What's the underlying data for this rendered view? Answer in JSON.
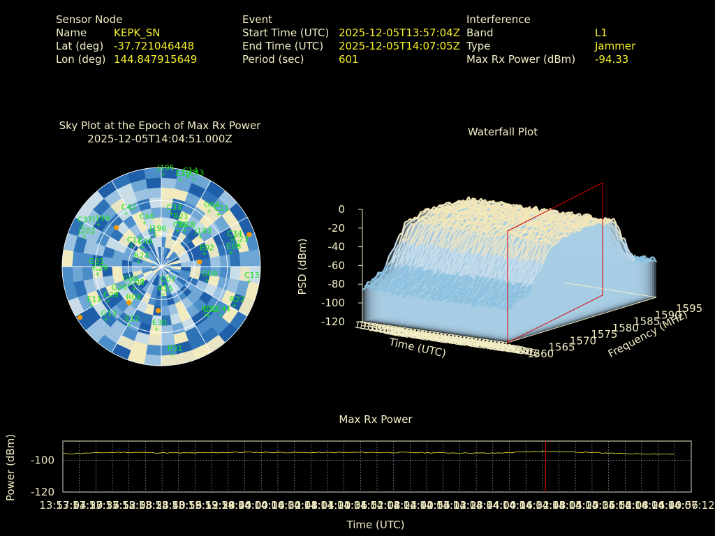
{
  "colors": {
    "label": "#f3eec6",
    "value": "#f5ef2a",
    "satellite": "#19e319",
    "marker": "#ff9a00",
    "cursor": "#e00000",
    "trace": "#f5ef2a"
  },
  "header": {
    "sensor": {
      "heading": "Sensor Node",
      "rows": [
        {
          "label": "Name",
          "value": "KEPK_SN"
        },
        {
          "label": "Lat (deg)",
          "value": "-37.721046448"
        },
        {
          "label": "Lon (deg)",
          "value": "144.847915649"
        }
      ]
    },
    "event": {
      "heading": "Event",
      "rows": [
        {
          "label": "Start Time (UTC)",
          "value": "2025-12-05T13:57:04Z"
        },
        {
          "label": "End Time (UTC)",
          "value": "2025-12-05T14:07:05Z"
        },
        {
          "label": "Period (sec)",
          "value": "601"
        }
      ]
    },
    "interference": {
      "heading": "Interference",
      "rows": [
        {
          "label": "Band",
          "value": "L1"
        },
        {
          "label": "Type",
          "value": "Jammer"
        },
        {
          "label": "Max Rx Power (dBm)",
          "value": "-94.33"
        }
      ]
    }
  },
  "skyplot": {
    "title": "Sky Plot at the Epoch of Max Rx Power",
    "subtitle": "2025-12-05T14:04:51.000Z",
    "satellites": [
      {
        "id": "J195",
        "az": 2,
        "el": 5
      },
      {
        "id": "E16",
        "az": 13,
        "el": 8
      },
      {
        "id": "C14",
        "az": 17,
        "el": 4
      },
      {
        "id": "C43",
        "az": 21,
        "el": 4
      },
      {
        "id": "C33",
        "az": 12,
        "el": 40
      },
      {
        "id": "R21",
        "az": 22,
        "el": 46
      },
      {
        "id": "C01",
        "az": 26,
        "el": 53
      },
      {
        "id": "G04",
        "az": 41,
        "el": 22
      },
      {
        "id": "C11",
        "az": 48,
        "el": 18
      },
      {
        "id": "C60",
        "az": 341,
        "el": 47
      },
      {
        "id": "J196",
        "az": 352,
        "el": 60
      },
      {
        "id": "C42",
        "az": 328,
        "el": 32
      },
      {
        "id": "J199",
        "az": 305,
        "el": 22
      },
      {
        "id": "C37",
        "az": 298,
        "el": 10
      },
      {
        "id": "J202",
        "az": 292,
        "el": 16
      },
      {
        "id": "C12",
        "az": 307,
        "el": 58
      },
      {
        "id": "C46",
        "az": 319,
        "el": 66
      },
      {
        "id": "G28",
        "az": 34,
        "el": 50
      },
      {
        "id": "J193",
        "az": 53,
        "el": 44
      },
      {
        "id": "E02",
        "az": 73,
        "el": 48
      },
      {
        "id": "C34",
        "az": 69,
        "el": 20
      },
      {
        "id": "C23",
        "az": 74,
        "el": 16
      },
      {
        "id": "E08",
        "az": 78,
        "el": 24
      },
      {
        "id": "R23",
        "az": 285,
        "el": 70
      },
      {
        "id": "C13",
        "az": 99,
        "el": 8
      },
      {
        "id": "G09",
        "az": 105,
        "el": 46
      },
      {
        "id": "C32",
        "az": 135,
        "el": 28
      },
      {
        "id": "R22",
        "az": 117,
        "el": 14
      },
      {
        "id": "C41",
        "az": 128,
        "el": 20
      },
      {
        "id": "R01",
        "az": 136,
        "el": 30
      },
      {
        "id": "C07",
        "az": 163,
        "el": 73
      },
      {
        "id": "R15",
        "az": 174,
        "el": 65
      },
      {
        "id": "C08",
        "az": 231,
        "el": 60
      },
      {
        "id": "G05",
        "az": 241,
        "el": 57
      },
      {
        "id": "G26",
        "az": 239,
        "el": 44
      },
      {
        "id": "R08",
        "az": 219,
        "el": 48
      },
      {
        "id": "E11",
        "az": 241,
        "el": 19
      },
      {
        "id": "C28",
        "az": 237,
        "el": 34
      },
      {
        "id": "G13",
        "az": 226,
        "el": 22
      },
      {
        "id": "E12",
        "az": 208,
        "el": 31
      },
      {
        "id": "E30",
        "az": 183,
        "el": 34
      },
      {
        "id": "R31",
        "az": 172,
        "el": 10
      },
      {
        "id": "C29",
        "az": 264,
        "el": 33
      },
      {
        "id": "G31",
        "az": 270,
        "el": 30
      }
    ],
    "markers": [
      {
        "az": 311,
        "el": 36
      },
      {
        "az": 70,
        "el": 5
      },
      {
        "az": 83,
        "el": 55
      },
      {
        "az": 238,
        "el": 3
      },
      {
        "az": 222,
        "el": 46
      },
      {
        "az": 184,
        "el": 50
      }
    ]
  },
  "waterfall": {
    "title": "Waterfall Plot",
    "zlabel": "PSD (dBm)",
    "xlabel": "Time (UTC)",
    "ylabel": "Frequency (MHz)",
    "z_ticks": [
      "0",
      "-20",
      "-40",
      "-60",
      "-80",
      "-100",
      "-120"
    ],
    "freq_ticks": [
      "1560",
      "1565",
      "1570",
      "1575",
      "1580",
      "1585",
      "1590",
      "1595"
    ]
  },
  "maxrx": {
    "title": "Max Rx Power",
    "ylabel": "Power (dBm)",
    "xlabel": "Time (UTC)",
    "y_ticks": [
      "-100",
      "-120"
    ],
    "x_ticks": [
      "13:57:04",
      "13:57:20",
      "13:57:36",
      "13:57:52",
      "13:58:08",
      "13:58:24",
      "13:58:40",
      "13:58:56",
      "13:59:12",
      "13:59:28",
      "13:59:44",
      "14:00:00",
      "14:00:16",
      "14:00:32",
      "14:00:48",
      "14:01:04",
      "14:01:20",
      "14:01:36",
      "14:01:52",
      "14:02:08",
      "14:02:24",
      "14:02:40",
      "14:02:56",
      "14:03:12",
      "14:03:28",
      "14:03:44",
      "14:04:00",
      "14:04:16",
      "14:04:32",
      "14:04:48",
      "14:05:04",
      "14:05:20",
      "14:05:36",
      "14:05:52",
      "14:06:08",
      "14:06:24",
      "14:06:40",
      "14:06:56",
      "14:07:12"
    ]
  },
  "chart_data": [
    {
      "type": "scatter",
      "title": "Sky Plot at the Epoch of Max Rx Power",
      "subtitle": "2025-12-05T14:04:51.000Z",
      "note": "polar azimuth/elevation"
    },
    {
      "type": "area",
      "title": "Waterfall Plot",
      "xlabel": "Time (UTC)",
      "ylabel": "Frequency (MHz)",
      "zlabel": "PSD (dBm)",
      "zlim": [
        -120,
        0
      ],
      "ylim": [
        1560,
        1595
      ],
      "profile": {
        "freq_mhz": [
          1560,
          1565,
          1570,
          1575,
          1580,
          1585,
          1590,
          1595
        ],
        "psd_dbm": [
          -85,
          -72,
          -30,
          -22,
          -22,
          -24,
          -75,
          -80
        ]
      }
    },
    {
      "type": "line",
      "title": "Max Rx Power",
      "xlabel": "Time (UTC)",
      "ylabel": "Power (dBm)",
      "ylim": [
        -120,
        -88
      ],
      "x": [
        "13:57:04",
        "13:58:00",
        "13:59:00",
        "14:00:00",
        "14:01:00",
        "14:02:00",
        "14:03:00",
        "14:04:00",
        "14:04:51",
        "14:05:30",
        "14:06:00",
        "14:07:05"
      ],
      "values": [
        -96,
        -95,
        -95.5,
        -95,
        -95.2,
        -95.1,
        -95.3,
        -95.6,
        -94.33,
        -95,
        -95.8,
        -96.3
      ],
      "cursor": "14:04:51"
    }
  ]
}
